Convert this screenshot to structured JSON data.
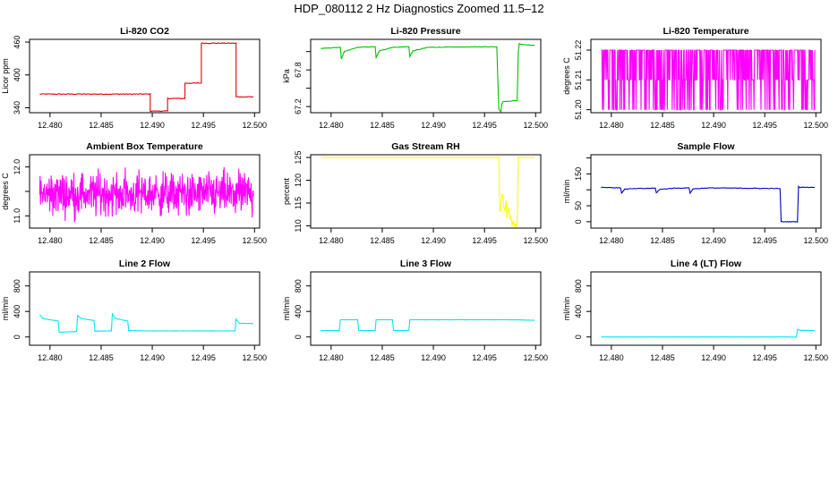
{
  "figure_title": "HDP_080112  2 Hz Diagnostics Zoomed 11.5–12",
  "chart_data": [
    {
      "type": "line",
      "title": "Li-820 CO2",
      "ylabel": "Licor ppm",
      "color": "#e8000b",
      "xlim": [
        12.478,
        12.5005
      ],
      "xticks": [
        12.48,
        12.485,
        12.49,
        12.495,
        12.5
      ],
      "ylim": [
        331,
        465
      ],
      "yticks": [
        340,
        400,
        460
      ],
      "ytick_labels": [
        "340",
        "400",
        "460"
      ],
      "noise": 0.8,
      "x": [
        12.479,
        12.4898,
        12.4898,
        12.4915,
        12.4915,
        12.4932,
        12.4932,
        12.4948,
        12.4948,
        12.4982,
        12.4982,
        12.4999
      ],
      "y": [
        365,
        365,
        334,
        334,
        357,
        357,
        385,
        385,
        458,
        458,
        360,
        360
      ]
    },
    {
      "type": "line",
      "title": "Li-820 Pressure",
      "ylabel": "kPa",
      "color": "#00c000",
      "xlim": [
        12.478,
        12.5005
      ],
      "xticks": [
        12.48,
        12.485,
        12.49,
        12.495,
        12.5
      ],
      "ylim": [
        67.1,
        68.3
      ],
      "yticks": [
        67.2,
        67.5,
        67.8,
        68.1
      ],
      "ytick_labels": [
        "67.2",
        "",
        "67.8",
        ""
      ],
      "noise": 0.004,
      "x": [
        12.479,
        12.4809,
        12.481,
        12.4813,
        12.4826,
        12.4843,
        12.4844,
        12.4847,
        12.486,
        12.4876,
        12.4877,
        12.488,
        12.4895,
        12.4962,
        12.4964,
        12.4966,
        12.4967,
        12.4968,
        12.4982,
        12.4983,
        12.4984,
        12.4986,
        12.4999
      ],
      "y": [
        68.15,
        68.17,
        67.98,
        68.1,
        68.17,
        68.18,
        68.0,
        68.11,
        68.17,
        68.18,
        68.02,
        68.11,
        68.17,
        68.18,
        67.16,
        67.11,
        67.25,
        67.28,
        67.3,
        68.1,
        68.23,
        68.22,
        68.2
      ]
    },
    {
      "type": "line",
      "title": "Li-820 Temperature",
      "ylabel": "degrees C",
      "color": "#ff00ff",
      "pattern": "dense_flicker",
      "xlim": [
        12.478,
        12.5005
      ],
      "xticks": [
        12.48,
        12.485,
        12.49,
        12.495,
        12.5
      ],
      "ylim": [
        51.199,
        51.2236
      ],
      "yticks": [
        51.2,
        51.21,
        51.22
      ],
      "ytick_labels": [
        "51.20",
        "51.21",
        "51.22"
      ],
      "levels": [
        51.2,
        51.21,
        51.22
      ],
      "x_range": [
        12.479,
        12.4999
      ]
    },
    {
      "type": "line",
      "title": "Ambient Box Temperature",
      "ylabel": "degrees C",
      "color": "#ff00ff",
      "pattern": "noise",
      "xlim": [
        12.478,
        12.5005
      ],
      "xticks": [
        12.48,
        12.485,
        12.49,
        12.495,
        12.5
      ],
      "ylim": [
        10.75,
        12.25
      ],
      "yticks": [
        11.0,
        11.5,
        12.0
      ],
      "ytick_labels": [
        "11.0",
        "",
        "12.0"
      ],
      "center": 11.45,
      "spread": 0.4,
      "x_range": [
        12.479,
        12.4999
      ]
    },
    {
      "type": "line",
      "title": "Gas Stream RH",
      "ylabel": "percent",
      "color": "#ffff00",
      "xlim": [
        12.478,
        12.5005
      ],
      "xticks": [
        12.48,
        12.485,
        12.49,
        12.495,
        12.5
      ],
      "ylim": [
        109.5,
        125.6
      ],
      "yticks": [
        110,
        115,
        120,
        125
      ],
      "ytick_labels": [
        "110",
        "115",
        "120",
        "125"
      ],
      "noise": 0.0,
      "x": [
        12.479,
        12.4964,
        12.4965,
        12.4967,
        12.4975,
        12.4982,
        12.4983,
        12.4999
      ],
      "y": [
        125,
        125,
        113,
        117,
        112,
        110,
        125,
        125
      ],
      "noisy_x_range": [
        12.4966,
        12.4982
      ],
      "noisy_spread": 2.2
    },
    {
      "type": "line",
      "title": "Sample Flow",
      "ylabel": "ml/min",
      "color": "#0000cc",
      "xlim": [
        12.478,
        12.5005
      ],
      "xticks": [
        12.48,
        12.485,
        12.49,
        12.495,
        12.5
      ],
      "ylim": [
        -20,
        210
      ],
      "yticks": [
        0,
        50,
        100,
        150,
        200
      ],
      "ytick_labels": [
        "0",
        "50",
        "",
        "150",
        ""
      ],
      "noise": 1.0,
      "x": [
        12.479,
        12.4809,
        12.481,
        12.4813,
        12.4826,
        12.4843,
        12.4844,
        12.4847,
        12.486,
        12.4876,
        12.4877,
        12.488,
        12.4895,
        12.4965,
        12.4966,
        12.4982,
        12.4983,
        12.4984,
        12.4999
      ],
      "y": [
        108,
        106,
        90,
        102,
        104,
        105,
        90,
        101,
        105,
        106,
        90,
        103,
        106,
        104,
        0,
        0,
        110,
        108,
        108
      ]
    },
    {
      "type": "line",
      "title": "Line 2 Flow",
      "ylabel": "ml/min",
      "color": "#00e5ee",
      "xlim": [
        12.478,
        12.5005
      ],
      "xticks": [
        12.48,
        12.485,
        12.49,
        12.495,
        12.5
      ],
      "ylim": [
        -130,
        1020
      ],
      "yticks": [
        0,
        400,
        800
      ],
      "ytick_labels": [
        "0",
        "400",
        "800"
      ],
      "noise": 2.0,
      "x": [
        12.479,
        12.4793,
        12.4808,
        12.4809,
        12.4826,
        12.4827,
        12.483,
        12.4843,
        12.4844,
        12.486,
        12.4861,
        12.4864,
        12.4876,
        12.4877,
        12.4895,
        12.4981,
        12.4982,
        12.4985,
        12.4999
      ],
      "y": [
        350,
        290,
        250,
        75,
        85,
        340,
        290,
        260,
        90,
        95,
        360,
        290,
        250,
        100,
        95,
        95,
        280,
        215,
        210
      ]
    },
    {
      "type": "line",
      "title": "Line 3 Flow",
      "ylabel": "ml/min",
      "color": "#00e5ee",
      "xlim": [
        12.478,
        12.5005
      ],
      "xticks": [
        12.48,
        12.485,
        12.49,
        12.495,
        12.5
      ],
      "ylim": [
        -130,
        1020
      ],
      "yticks": [
        0,
        400,
        800
      ],
      "ytick_labels": [
        "0",
        "400",
        "800"
      ],
      "noise": 2.0,
      "x": [
        12.479,
        12.4808,
        12.4809,
        12.4826,
        12.4827,
        12.4843,
        12.4844,
        12.486,
        12.4861,
        12.4876,
        12.4877,
        12.4982,
        12.4999
      ],
      "y": [
        100,
        100,
        270,
        270,
        100,
        100,
        270,
        270,
        100,
        100,
        270,
        270,
        260
      ]
    },
    {
      "type": "line",
      "title": "Line 4 (LT) Flow",
      "ylabel": "ml/min",
      "color": "#00e5ee",
      "xlim": [
        12.478,
        12.5005
      ],
      "xticks": [
        12.48,
        12.485,
        12.49,
        12.495,
        12.5
      ],
      "ylim": [
        -130,
        1020
      ],
      "yticks": [
        0,
        400,
        800
      ],
      "ytick_labels": [
        "0",
        "400",
        "800"
      ],
      "noise": 1.0,
      "x": [
        12.479,
        12.4981,
        12.4982,
        12.4984,
        12.4999
      ],
      "y": [
        0,
        0,
        120,
        105,
        100
      ]
    }
  ]
}
